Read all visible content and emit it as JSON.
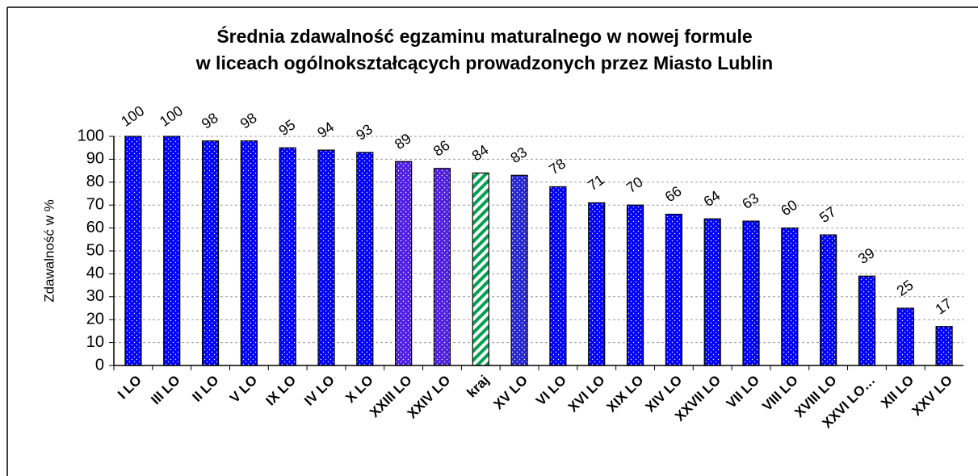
{
  "chart_data": {
    "type": "bar",
    "title": [
      "Średnia zdawalność egzaminu maturalnego w nowej formule",
      "w liceach ogólnokształcących prowadzonych przez Miasto Lublin"
    ],
    "y_label": "Zdawalność w %",
    "categories": [
      "I LO",
      "III LO",
      "II LO",
      "V LO",
      "IX LO",
      "IV LO",
      "X LO",
      "XXIII LO",
      "XXIV LO",
      "kraj",
      "XV LO",
      "VI LO",
      "XVI LO",
      "XIX LO",
      "XIV LO",
      "XXVII LO",
      "VII LO",
      "VIII LO",
      "XVIII LO",
      "XXVI LO…",
      "XII LO",
      "XXV LO"
    ],
    "values": [
      100,
      100,
      98,
      98,
      95,
      94,
      93,
      89,
      86,
      84,
      83,
      78,
      71,
      70,
      66,
      64,
      63,
      60,
      57,
      39,
      25,
      17
    ],
    "colors": [
      "#0000ff",
      "#0000ff",
      "#0000ff",
      "#0000ff",
      "#0000ff",
      "#0000ff",
      "#0000ff",
      "#5020e0",
      "#5020e0",
      "#00a050",
      "#2828d0",
      "#0000ff",
      "#0000ff",
      "#0000ff",
      "#0000ff",
      "#0000ff",
      "#0000ff",
      "#0000ff",
      "#0000ff",
      "#0000ff",
      "#0000ff",
      "#0000ff"
    ],
    "patterns": [
      "dots",
      "dots",
      "dots",
      "dots",
      "dots",
      "dots",
      "dots",
      "dots",
      "dots",
      "hatch",
      "dots",
      "dots",
      "dots",
      "dots",
      "dots",
      "dots",
      "dots",
      "dots",
      "dots",
      "dots",
      "dots",
      "dots"
    ],
    "ylim": [
      0,
      100
    ],
    "yticks": [
      0,
      10,
      20,
      30,
      40,
      50,
      60,
      70,
      80,
      90,
      100
    ],
    "grid": true
  }
}
